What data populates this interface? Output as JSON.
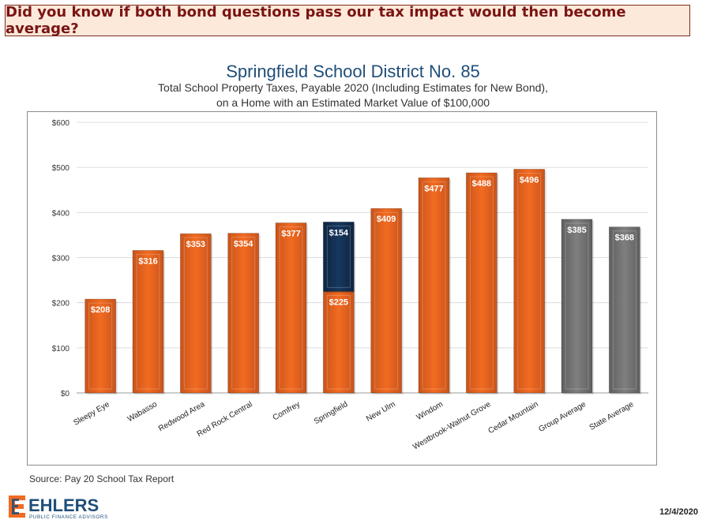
{
  "banner": {
    "text": "Did you know if both bond questions pass our tax impact would then become average?"
  },
  "chart_data": {
    "type": "bar",
    "title": "Springfield School District No. 85",
    "subtitle_lines": [
      "Total School Property Taxes, Payable 2020 (Including Estimates for New Bond),",
      "on a Home with an Estimated Market Value of $100,000"
    ],
    "categories": [
      "Sleepy Eye",
      "Wabasso",
      "Redwood Area",
      "Red Rock Central",
      "Comfrey",
      "Springfield",
      "New Ulm",
      "Windom",
      "Westbrook-Walnut Grove",
      "Cedar Mountain",
      "Group Average",
      "State Average"
    ],
    "values": [
      208,
      316,
      353,
      354,
      377,
      225,
      409,
      477,
      488,
      496,
      385,
      368
    ],
    "stacked_extra": [
      0,
      0,
      0,
      0,
      0,
      154,
      0,
      0,
      0,
      0,
      0,
      0
    ],
    "value_labels": [
      "$208",
      "$316",
      "$353",
      "$354",
      "$377",
      "$225",
      "$409",
      "$477",
      "$488",
      "$496",
      "$385",
      "$368"
    ],
    "stacked_labels": [
      "",
      "",
      "",
      "",
      "",
      "$154",
      "",
      "",
      "",
      "",
      "",
      ""
    ],
    "bar_kinds": [
      "district",
      "district",
      "district",
      "district",
      "district",
      "district",
      "district",
      "district",
      "district",
      "district",
      "average",
      "average"
    ],
    "ylim": [
      0,
      600
    ],
    "yticks": [
      0,
      100,
      200,
      300,
      400,
      500,
      600
    ],
    "ytick_labels": [
      "$0",
      "$100",
      "$200",
      "$300",
      "$400",
      "$500",
      "$600"
    ],
    "grid": true,
    "colors": {
      "district": "#f26b21",
      "average": "#7f7f7f",
      "new_bond": "#17375e"
    }
  },
  "footer": {
    "source": "Source: Pay 20 School Tax Report",
    "date": "12/4/2020",
    "logo_name": "EHLERS",
    "logo_tagline": "PUBLIC FINANCE ADVISORS"
  }
}
